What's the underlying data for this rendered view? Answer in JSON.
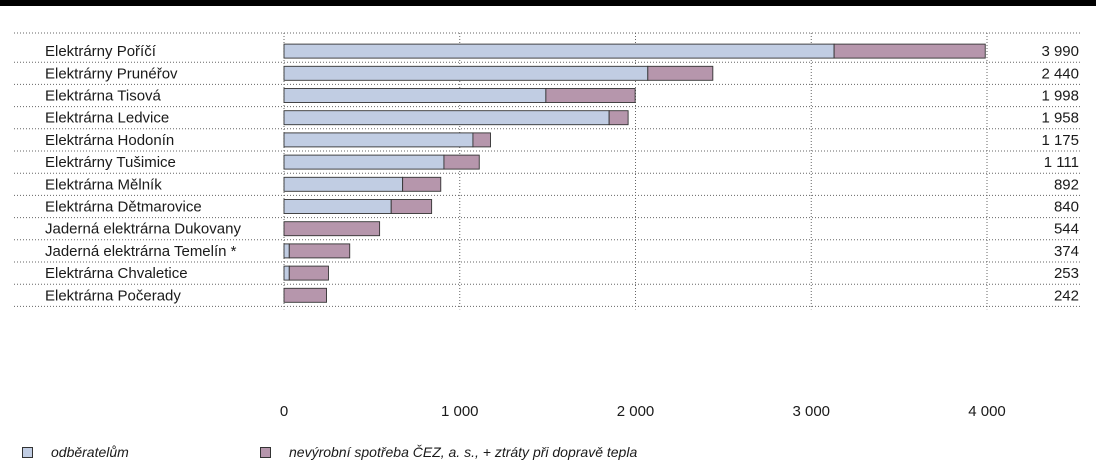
{
  "colors": {
    "odberatelum": "#c1cde3",
    "nevyrobni": "#b696ac",
    "outline": "#333333",
    "grid": "#666666"
  },
  "chart_data": {
    "type": "bar",
    "orientation": "horizontal",
    "stacked": true,
    "categories": [
      "Elektrárny Poříčí",
      "Elektrárny Prunéřov",
      "Elektrárna Tisová",
      "Elektrárna Ledvice",
      "Elektrárna Hodonín",
      "Elektrárny Tušimice",
      "Elektrárna Mělník",
      "Elektrárna Dětmarovice",
      "Jaderná elektrárna Dukovany",
      "Jaderná elektrárna Temelín *",
      "Elektrárna Chvaletice",
      "Elektrárna Počerady"
    ],
    "series": [
      {
        "name": "odběratelům",
        "values": [
          3130,
          2070,
          1490,
          1850,
          1075,
          910,
          675,
          610,
          0,
          30,
          30,
          0
        ]
      },
      {
        "name": "nevýrobní spotřeba ČEZ, a. s., + ztráty při dopravě tepla",
        "values": [
          860,
          370,
          508,
          108,
          100,
          201,
          217,
          230,
          544,
          344,
          223,
          242
        ]
      }
    ],
    "totals": [
      "3 990",
      "2 440",
      "1 998",
      "1 958",
      "1 175",
      "1 111",
      "892",
      "840",
      "544",
      "374",
      "253",
      "242"
    ],
    "x_ticks": [
      0,
      1000,
      2000,
      3000,
      4000
    ],
    "x_tick_labels": [
      "0",
      "1 000",
      "2 000",
      "3 000",
      "4 000"
    ],
    "xlim": [
      0,
      4000
    ],
    "grid": true,
    "legend_position": "bottom"
  },
  "legend": {
    "item1": "odběratelům",
    "item2": "nevýrobní spotřeba ČEZ, a. s., + ztráty při dopravě tepla"
  }
}
